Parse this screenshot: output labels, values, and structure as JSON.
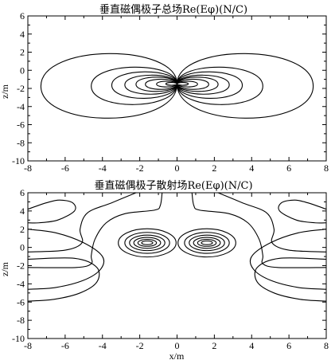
{
  "chart_data": [
    {
      "type": "contour",
      "title": "垂直磁偶极子总场Re(Eφ)(N/C)",
      "ylabel": "z/m",
      "xlim": [
        -8,
        8
      ],
      "ylim": [
        -10,
        6
      ],
      "xticks": [
        "-8",
        "-6",
        "-4",
        "-2",
        "0",
        "2",
        "4",
        "6",
        "8"
      ],
      "yticks": [
        "6",
        "4",
        "2",
        "0",
        "-2",
        "-4",
        "-6",
        "-8",
        "-10"
      ],
      "source_point": [
        0,
        -1.5
      ],
      "contour_lobes": [
        {
          "side": "left",
          "extent_x": 7.3,
          "top_z": 3.0,
          "bottom_z": -6.5
        },
        {
          "side": "left",
          "extent_x": 4.6,
          "top_z": 1.0,
          "bottom_z": -4.5
        },
        {
          "side": "left",
          "extent_x": 3.5,
          "top_z": 0.3,
          "bottom_z": -3.6
        },
        {
          "side": "left",
          "extent_x": 2.8,
          "top_z": -0.2,
          "bottom_z": -3.0
        },
        {
          "side": "left",
          "extent_x": 2.2,
          "top_z": -0.5,
          "bottom_z": -2.6
        },
        {
          "side": "left",
          "extent_x": 1.7,
          "top_z": -0.8,
          "bottom_z": -2.3
        },
        {
          "side": "left",
          "extent_x": 1.1,
          "top_z": -1.1,
          "bottom_z": -1.95
        },
        {
          "side": "left",
          "extent_x": 0.6,
          "top_z": -1.3,
          "bottom_z": -1.7
        },
        {
          "side": "right",
          "extent_x": 7.3,
          "top_z": 3.0,
          "bottom_z": -6.5
        },
        {
          "side": "right",
          "extent_x": 4.6,
          "top_z": 1.0,
          "bottom_z": -4.5
        },
        {
          "side": "right",
          "extent_x": 3.5,
          "top_z": 0.3,
          "bottom_z": -3.6
        },
        {
          "side": "right",
          "extent_x": 2.8,
          "top_z": -0.2,
          "bottom_z": -3.0
        },
        {
          "side": "right",
          "extent_x": 2.2,
          "top_z": -0.5,
          "bottom_z": -2.6
        },
        {
          "side": "right",
          "extent_x": 1.7,
          "top_z": -0.8,
          "bottom_z": -2.3
        },
        {
          "side": "right",
          "extent_x": 1.1,
          "top_z": -1.1,
          "bottom_z": -1.95
        },
        {
          "side": "right",
          "extent_x": 0.6,
          "top_z": -1.3,
          "bottom_z": -1.7
        }
      ]
    },
    {
      "type": "contour",
      "title": "垂直磁偶极子散射场Re(Eφ)(N/C)",
      "xlabel": "x/m",
      "ylabel": "z/m",
      "xlim": [
        -8,
        8
      ],
      "ylim": [
        -10,
        6
      ],
      "xticks": [
        "-8",
        "-6",
        "-4",
        "-2",
        "0",
        "2",
        "4",
        "6",
        "8"
      ],
      "yticks": [
        "6",
        "4",
        "2",
        "0",
        "-2",
        "-4",
        "-6",
        "-8",
        "-10"
      ],
      "closed_ring_centers": [
        [
          -1.6,
          0.5
        ],
        [
          1.6,
          0.5
        ]
      ],
      "closed_rings": [
        {
          "cx": -1.6,
          "cz": 0.5,
          "rx": 1.55,
          "rz": 1.55
        },
        {
          "cx": -1.6,
          "cz": 0.5,
          "rx": 1.2,
          "rz": 1.15
        },
        {
          "cx": -1.6,
          "cz": 0.5,
          "rx": 0.95,
          "rz": 0.85
        },
        {
          "cx": -1.6,
          "cz": 0.5,
          "rx": 0.72,
          "rz": 0.6
        },
        {
          "cx": -1.6,
          "cz": 0.5,
          "rx": 0.5,
          "rz": 0.38
        },
        {
          "cx": -1.6,
          "cz": 0.5,
          "rx": 0.3,
          "rz": 0.2
        },
        {
          "cx": 1.6,
          "cz": 0.5,
          "rx": 1.55,
          "rz": 1.55
        },
        {
          "cx": 1.6,
          "cz": 0.5,
          "rx": 1.2,
          "rz": 1.15
        },
        {
          "cx": 1.6,
          "cz": 0.5,
          "rx": 0.95,
          "rz": 0.85
        },
        {
          "cx": 1.6,
          "cz": 0.5,
          "rx": 0.72,
          "rz": 0.6
        },
        {
          "cx": 1.6,
          "cz": 0.5,
          "rx": 0.5,
          "rz": 0.38
        },
        {
          "cx": 1.6,
          "cz": 0.5,
          "rx": 0.3,
          "rz": 0.2
        }
      ],
      "open_contours": [
        {
          "name": "left-outer-band",
          "points": [
            [
              -8,
              2.0
            ],
            [
              -6.5,
              1.6
            ],
            [
              -5.0,
              0.5
            ],
            [
              -4.0,
              -1.0
            ],
            [
              -4.1,
              -2.4
            ],
            [
              -5.0,
              -3.6
            ],
            [
              -6.5,
              -4.4
            ],
            [
              -8,
              -4.6
            ]
          ]
        },
        {
          "name": "left-top-lobe",
          "points": [
            [
              -8,
              4.2
            ],
            [
              -7.0,
              4.9
            ],
            [
              -6.3,
              5.2
            ],
            [
              -5.6,
              4.9
            ],
            [
              -5.5,
              4.0
            ],
            [
              -6.4,
              3.0
            ],
            [
              -7.4,
              2.7
            ],
            [
              -8,
              2.7
            ]
          ]
        },
        {
          "name": "left-arch",
          "points": [
            [
              -8,
              -2.2
            ],
            [
              -5.4,
              -2.2
            ],
            [
              -4.6,
              -1.8
            ],
            [
              -4.6,
              -0.9
            ],
            [
              -4.4,
              0.9
            ],
            [
              -3.8,
              2.7
            ],
            [
              -2.8,
              3.7
            ],
            [
              -1.2,
              4.1
            ],
            [
              -0.9,
              4.6
            ],
            [
              -0.8,
              6
            ]
          ]
        },
        {
          "name": "left-mid",
          "points": [
            [
              -8,
              -0.5
            ],
            [
              -6.0,
              -0.3
            ],
            [
              -5.1,
              0.5
            ],
            [
              -5.2,
              2.0
            ],
            [
              -4.8,
              3.8
            ],
            [
              -3.5,
              4.9
            ],
            [
              -2.2,
              6
            ]
          ]
        },
        {
          "name": "left-bottom",
          "points": [
            [
              -8,
              -1.3
            ],
            [
              -5.5,
              -1.2
            ],
            [
              -4.3,
              -2.2
            ],
            [
              -4.3,
              -3.8
            ],
            [
              -5.2,
              -5.0
            ],
            [
              -6.6,
              -5.7
            ],
            [
              -8,
              -5.9
            ]
          ]
        },
        {
          "name": "right-outer-band",
          "points": [
            [
              8,
              2.0
            ],
            [
              6.5,
              1.6
            ],
            [
              5.0,
              0.5
            ],
            [
              4.0,
              -1.0
            ],
            [
              4.1,
              -2.4
            ],
            [
              5.0,
              -3.6
            ],
            [
              6.5,
              -4.4
            ],
            [
              8,
              -4.6
            ]
          ]
        },
        {
          "name": "right-top-lobe",
          "points": [
            [
              8,
              4.2
            ],
            [
              7.0,
              4.9
            ],
            [
              6.3,
              5.2
            ],
            [
              5.6,
              4.9
            ],
            [
              5.5,
              4.0
            ],
            [
              6.4,
              3.0
            ],
            [
              7.4,
              2.7
            ],
            [
              8,
              2.7
            ]
          ]
        },
        {
          "name": "right-arch",
          "points": [
            [
              8,
              -2.2
            ],
            [
              5.4,
              -2.2
            ],
            [
              4.6,
              -1.8
            ],
            [
              4.6,
              -0.9
            ],
            [
              4.4,
              0.9
            ],
            [
              3.8,
              2.7
            ],
            [
              2.8,
              3.7
            ],
            [
              1.2,
              4.1
            ],
            [
              0.9,
              4.6
            ],
            [
              0.8,
              6
            ]
          ]
        },
        {
          "name": "right-mid",
          "points": [
            [
              8,
              -0.5
            ],
            [
              6.0,
              -0.3
            ],
            [
              5.1,
              0.5
            ],
            [
              5.2,
              2.0
            ],
            [
              4.8,
              3.8
            ],
            [
              3.5,
              4.9
            ],
            [
              2.2,
              6
            ]
          ]
        },
        {
          "name": "right-bottom",
          "points": [
            [
              8,
              -1.3
            ],
            [
              5.5,
              -1.2
            ],
            [
              4.3,
              -2.2
            ],
            [
              4.3,
              -3.8
            ],
            [
              5.2,
              -5.0
            ],
            [
              6.6,
              -5.7
            ],
            [
              8,
              -5.9
            ]
          ]
        }
      ]
    }
  ]
}
